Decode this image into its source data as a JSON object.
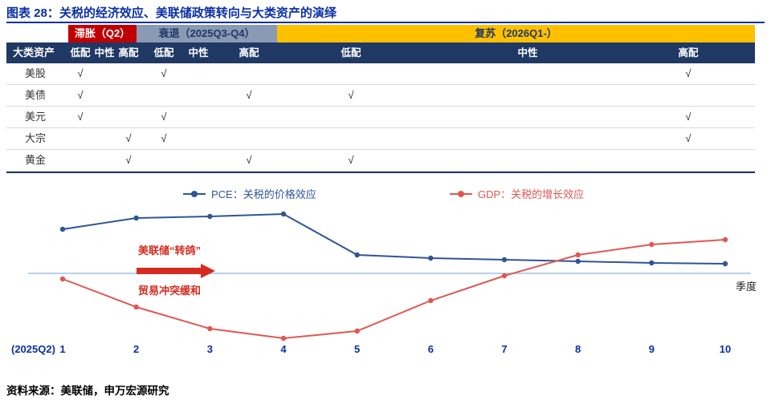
{
  "page": {
    "title": "图表 28：关税的经济效应、美联储政策转向与大类资产的演绎",
    "source": "资料来源：美联储，申万宏源研究",
    "accent_color": "#0a2fa8"
  },
  "table": {
    "corner_label": "大类资产",
    "check": "√",
    "phases": [
      {
        "label": "滞胀（Q2）",
        "bg": "#c00000",
        "fg": "#ffffff"
      },
      {
        "label": "衰退（2025Q3-Q4）",
        "bg": "#8a9ab5",
        "fg": "#1f3864"
      },
      {
        "label": "复苏（2026Q1-）",
        "bg": "#ffc000",
        "fg": "#1f3864"
      }
    ],
    "stances": [
      "低配",
      "中性",
      "高配"
    ],
    "rows": [
      {
        "name": "美股",
        "marks": [
          "zl",
          "sl",
          "fh"
        ]
      },
      {
        "name": "美债",
        "marks": [
          "zl",
          "sh",
          "fl"
        ]
      },
      {
        "name": "美元",
        "marks": [
          "zl",
          "sl",
          "fh"
        ]
      },
      {
        "name": "大宗",
        "marks": [
          "zh",
          "sl",
          "fh"
        ]
      },
      {
        "name": "黄金",
        "marks": [
          "zh",
          "sh",
          "fl"
        ]
      }
    ]
  },
  "chart_data": {
    "type": "line",
    "x": [
      1,
      2,
      3,
      4,
      5,
      6,
      7,
      8,
      9,
      10
    ],
    "x_axis_note": "(2025Q2)",
    "xlabel": "季度",
    "ylim": [
      -1,
      1
    ],
    "grid": false,
    "legend_position": "top",
    "series": [
      {
        "id": "pce",
        "name": "PCE：关税的价格效应",
        "color": "#2f5597",
        "values": [
          0.55,
          0.69,
          0.71,
          0.74,
          0.23,
          0.19,
          0.17,
          0.15,
          0.13,
          0.12
        ]
      },
      {
        "id": "gdp",
        "name": "GDP：关税的增长效应",
        "color": "#e05752",
        "values": [
          -0.07,
          -0.42,
          -0.69,
          -0.81,
          -0.72,
          -0.34,
          -0.03,
          0.23,
          0.36,
          0.42
        ]
      }
    ],
    "annotations": [
      "美联储“转鸽”",
      "贸易冲突缓和"
    ]
  }
}
